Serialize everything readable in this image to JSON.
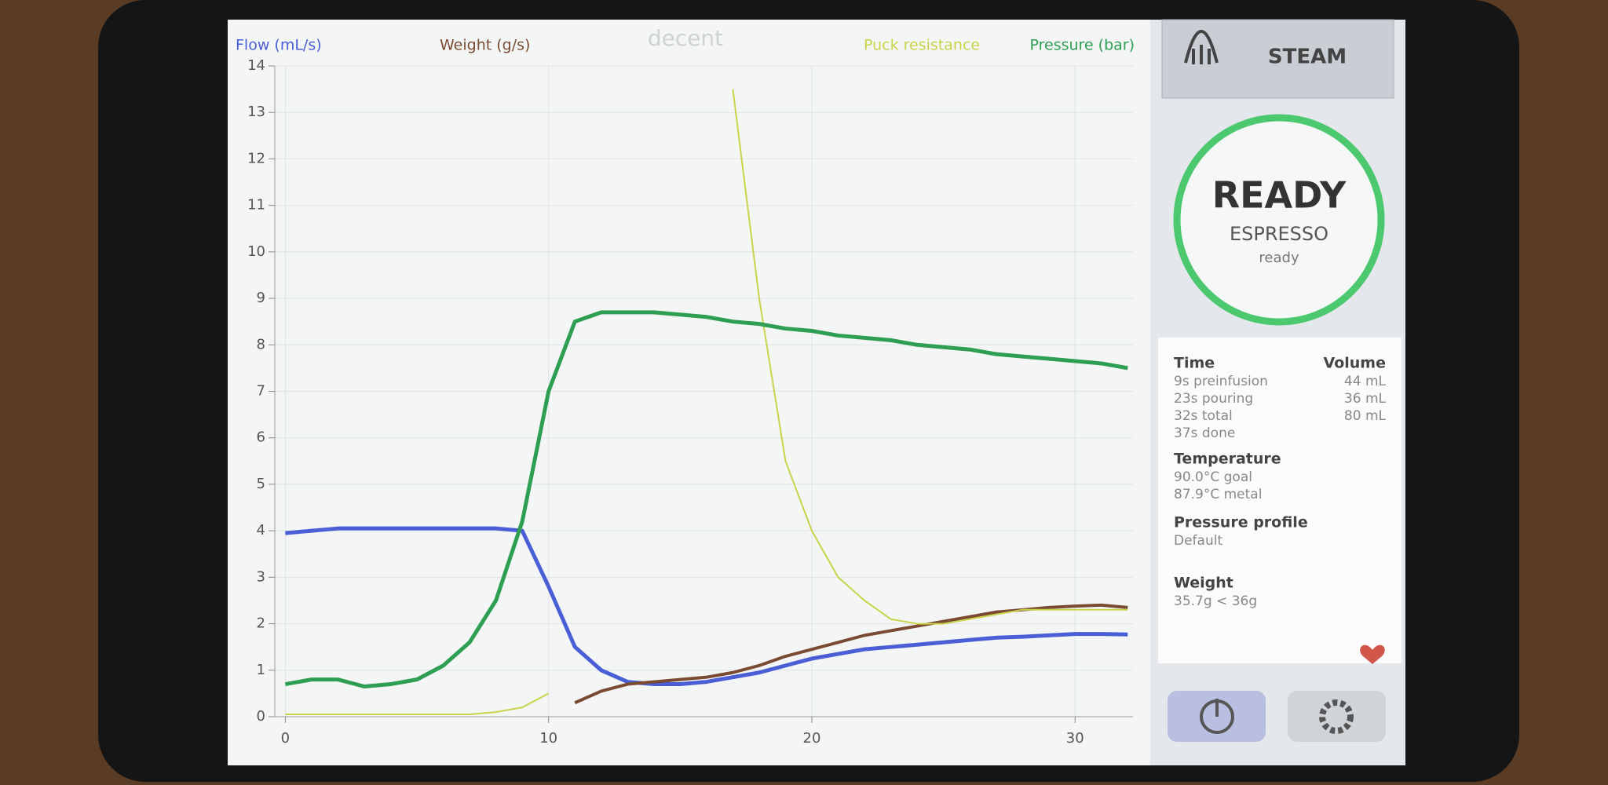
{
  "logo": "decent",
  "chart_data": {
    "type": "line",
    "x": [
      0,
      1,
      2,
      3,
      4,
      5,
      6,
      7,
      8,
      9,
      10,
      11,
      12,
      13,
      14,
      15,
      16,
      17,
      18,
      19,
      20,
      21,
      22,
      23,
      24,
      25,
      26,
      27,
      28,
      29,
      30,
      31,
      32
    ],
    "series": [
      {
        "name": "Flow (mL/s)",
        "color": "#4a5fd6",
        "values": [
          3.95,
          4.0,
          4.05,
          4.05,
          4.05,
          4.05,
          4.05,
          4.05,
          4.05,
          4.0,
          2.8,
          1.5,
          1.0,
          0.75,
          0.7,
          0.7,
          0.75,
          0.85,
          0.95,
          1.1,
          1.25,
          1.35,
          1.45,
          1.5,
          1.55,
          1.6,
          1.65,
          1.7,
          1.72,
          1.75,
          1.78,
          1.78,
          1.77
        ]
      },
      {
        "name": "Weight (g/s)",
        "color": "#7a4b32",
        "values": [
          null,
          null,
          null,
          null,
          null,
          null,
          null,
          null,
          null,
          null,
          null,
          0.3,
          0.55,
          0.7,
          0.75,
          0.8,
          0.85,
          0.95,
          1.1,
          1.3,
          1.45,
          1.6,
          1.75,
          1.85,
          1.95,
          2.05,
          2.15,
          2.25,
          2.3,
          2.35,
          2.38,
          2.4,
          2.35
        ]
      },
      {
        "name": "Puck resistance",
        "color": "#c9d34a",
        "values": [
          0.05,
          0.05,
          0.05,
          0.05,
          0.05,
          0.05,
          0.05,
          0.05,
          0.1,
          0.2,
          0.5,
          null,
          null,
          null,
          null,
          null,
          null,
          13.5,
          9,
          5.5,
          4,
          3,
          2.5,
          2.1,
          2.0,
          2.0,
          2.1,
          2.2,
          2.3,
          2.3,
          2.3,
          2.3,
          2.3
        ]
      },
      {
        "name": "Pressure (bar)",
        "color": "#2e9e52",
        "values": [
          0.7,
          0.8,
          0.8,
          0.65,
          0.7,
          0.8,
          1.1,
          1.6,
          2.5,
          4.2,
          7.0,
          8.5,
          8.7,
          8.7,
          8.7,
          8.65,
          8.6,
          8.5,
          8.45,
          8.35,
          8.3,
          8.2,
          8.15,
          8.1,
          8.0,
          7.95,
          7.9,
          7.8,
          7.75,
          7.7,
          7.65,
          7.6,
          7.5
        ]
      }
    ],
    "xlim": [
      -0.4,
      32.2
    ],
    "xticks": [
      0,
      10,
      20,
      30
    ],
    "ylim": [
      0,
      14
    ],
    "yticks": [
      0,
      1,
      2,
      3,
      4,
      5,
      6,
      7,
      8,
      9,
      10,
      11,
      12,
      13,
      14
    ],
    "grid": true
  },
  "steam_button": "STEAM",
  "status": {
    "title": "READY",
    "mode": "ESPRESSO",
    "state": "ready"
  },
  "info": {
    "time_heading": "Time",
    "volume_heading": "Volume",
    "time_lines": [
      "9s preinfusion",
      "23s pouring",
      "32s total",
      "37s done"
    ],
    "volume_lines": [
      "44 mL",
      "36 mL",
      "80 mL"
    ],
    "temperature": {
      "heading": "Temperature",
      "lines": [
        "90.0°C goal",
        "87.9°C metal"
      ]
    },
    "profile": {
      "heading": "Pressure profile",
      "lines": [
        "Default"
      ]
    },
    "weight": {
      "heading": "Weight",
      "lines": [
        "35.7g < 36g"
      ]
    }
  }
}
